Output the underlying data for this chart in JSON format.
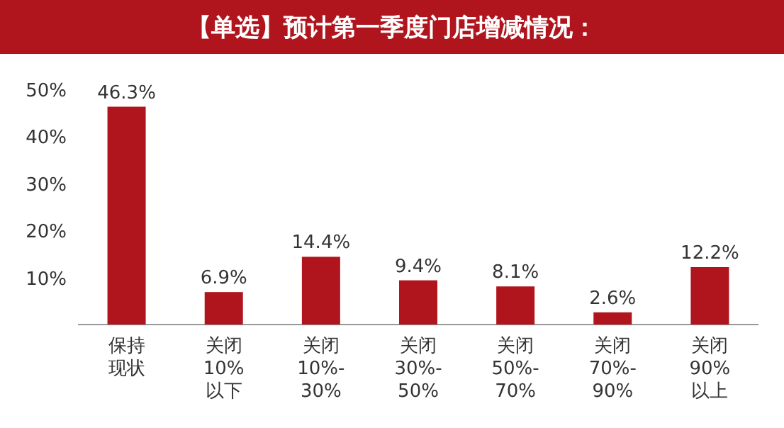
{
  "chart_data": {
    "type": "bar",
    "title": "【单选】预计第一季度门店增减情况：",
    "categories": [
      "保持现状",
      "关闭10%以下",
      "关闭10%-30%",
      "关闭30%-50%",
      "关闭50%-70%",
      "关闭70%-90%",
      "关闭90%以上"
    ],
    "values": [
      46.3,
      6.9,
      14.4,
      9.4,
      8.1,
      2.6,
      12.2
    ],
    "value_labels": [
      "46.3%",
      "6.9%",
      "14.4%",
      "9.4%",
      "8.1%",
      "2.6%",
      "12.2%"
    ],
    "color": "#b0151e",
    "ylim": [
      0,
      50
    ],
    "yticks": [
      {
        "value": 10,
        "label": "10%"
      },
      {
        "value": 20,
        "label": "20%"
      },
      {
        "value": 30,
        "label": "30%"
      },
      {
        "value": 40,
        "label": "40%"
      },
      {
        "value": 50,
        "label": "50%"
      }
    ],
    "grid": false
  }
}
